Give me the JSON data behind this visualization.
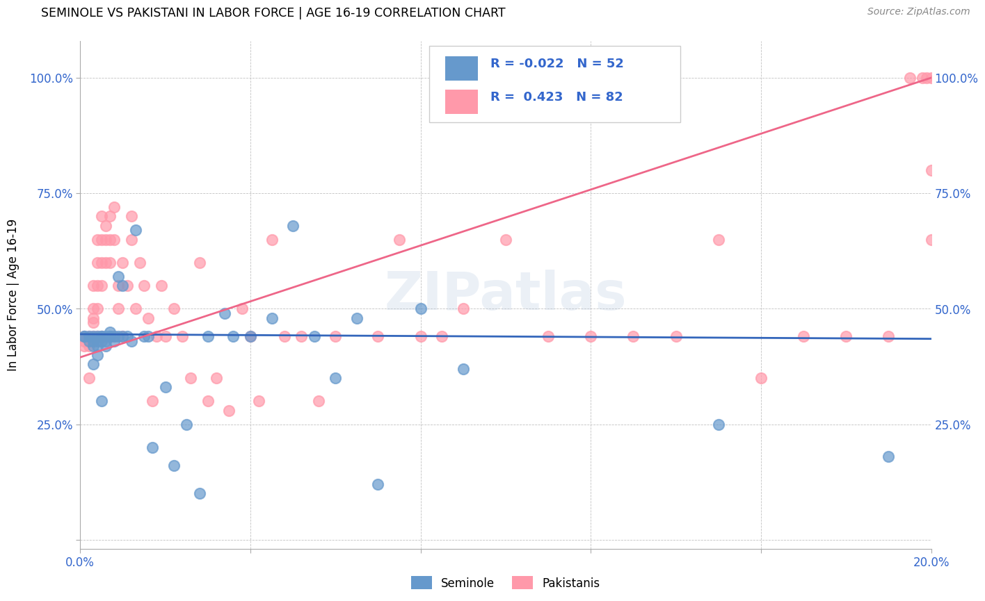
{
  "title": "SEMINOLE VS PAKISTANI IN LABOR FORCE | AGE 16-19 CORRELATION CHART",
  "source": "Source: ZipAtlas.com",
  "ylabel": "In Labor Force | Age 16-19",
  "xlim": [
    0.0,
    0.2
  ],
  "ylim": [
    -0.02,
    1.08
  ],
  "xticks": [
    0.0,
    0.04,
    0.08,
    0.12,
    0.16,
    0.2
  ],
  "xtick_labels": [
    "0.0%",
    "",
    "",
    "",
    "",
    "20.0%"
  ],
  "ytick_positions": [
    0.0,
    0.25,
    0.5,
    0.75,
    1.0
  ],
  "ytick_labels": [
    "",
    "25.0%",
    "50.0%",
    "75.0%",
    "100.0%"
  ],
  "seminole_color": "#6699CC",
  "pakistani_color": "#FF99AA",
  "seminole_line_color": "#3366BB",
  "pakistani_line_color": "#EE6688",
  "legend_r_seminole": "-0.022",
  "legend_n_seminole": "52",
  "legend_r_pakistani": "0.423",
  "legend_n_pakistani": "82",
  "watermark": "ZIPatlas",
  "seminole_x": [
    0.001,
    0.001,
    0.002,
    0.002,
    0.003,
    0.003,
    0.003,
    0.003,
    0.004,
    0.004,
    0.004,
    0.004,
    0.005,
    0.005,
    0.005,
    0.005,
    0.006,
    0.006,
    0.006,
    0.007,
    0.007,
    0.007,
    0.008,
    0.008,
    0.009,
    0.009,
    0.01,
    0.01,
    0.011,
    0.012,
    0.013,
    0.015,
    0.016,
    0.017,
    0.02,
    0.022,
    0.025,
    0.028,
    0.03,
    0.034,
    0.036,
    0.04,
    0.045,
    0.05,
    0.055,
    0.06,
    0.065,
    0.07,
    0.08,
    0.09,
    0.15,
    0.19
  ],
  "seminole_y": [
    0.44,
    0.44,
    0.44,
    0.43,
    0.44,
    0.43,
    0.42,
    0.38,
    0.44,
    0.43,
    0.42,
    0.4,
    0.44,
    0.44,
    0.43,
    0.3,
    0.44,
    0.43,
    0.42,
    0.45,
    0.44,
    0.44,
    0.44,
    0.43,
    0.57,
    0.44,
    0.55,
    0.44,
    0.44,
    0.43,
    0.67,
    0.44,
    0.44,
    0.2,
    0.33,
    0.16,
    0.25,
    0.1,
    0.44,
    0.49,
    0.44,
    0.44,
    0.48,
    0.68,
    0.44,
    0.35,
    0.48,
    0.12,
    0.5,
    0.37,
    0.25,
    0.18
  ],
  "pakistani_x": [
    0.001,
    0.001,
    0.001,
    0.002,
    0.002,
    0.002,
    0.002,
    0.003,
    0.003,
    0.003,
    0.003,
    0.003,
    0.004,
    0.004,
    0.004,
    0.004,
    0.004,
    0.005,
    0.005,
    0.005,
    0.005,
    0.005,
    0.006,
    0.006,
    0.006,
    0.007,
    0.007,
    0.007,
    0.008,
    0.008,
    0.008,
    0.009,
    0.009,
    0.01,
    0.01,
    0.011,
    0.012,
    0.012,
    0.013,
    0.014,
    0.015,
    0.016,
    0.017,
    0.018,
    0.019,
    0.02,
    0.022,
    0.024,
    0.026,
    0.028,
    0.03,
    0.032,
    0.035,
    0.038,
    0.04,
    0.042,
    0.045,
    0.048,
    0.052,
    0.056,
    0.06,
    0.07,
    0.075,
    0.08,
    0.085,
    0.09,
    0.1,
    0.11,
    0.12,
    0.13,
    0.14,
    0.15,
    0.16,
    0.17,
    0.18,
    0.19,
    0.195,
    0.198,
    0.199,
    0.2,
    0.2,
    0.2
  ],
  "pakistani_y": [
    0.44,
    0.43,
    0.42,
    0.44,
    0.43,
    0.42,
    0.35,
    0.55,
    0.5,
    0.48,
    0.47,
    0.44,
    0.65,
    0.6,
    0.55,
    0.5,
    0.44,
    0.7,
    0.65,
    0.6,
    0.55,
    0.44,
    0.68,
    0.65,
    0.6,
    0.7,
    0.65,
    0.6,
    0.72,
    0.65,
    0.44,
    0.55,
    0.5,
    0.6,
    0.44,
    0.55,
    0.7,
    0.65,
    0.5,
    0.6,
    0.55,
    0.48,
    0.3,
    0.44,
    0.55,
    0.44,
    0.5,
    0.44,
    0.35,
    0.6,
    0.3,
    0.35,
    0.28,
    0.5,
    0.44,
    0.3,
    0.65,
    0.44,
    0.44,
    0.3,
    0.44,
    0.44,
    0.65,
    0.44,
    0.44,
    0.5,
    0.65,
    0.44,
    0.44,
    0.44,
    0.44,
    0.65,
    0.35,
    0.44,
    0.44,
    0.44,
    1.0,
    1.0,
    1.0,
    1.0,
    0.65,
    0.8
  ],
  "seminole_reg": [
    0.44,
    0.424
  ],
  "pakistani_reg": [
    0.4,
    1.0
  ]
}
